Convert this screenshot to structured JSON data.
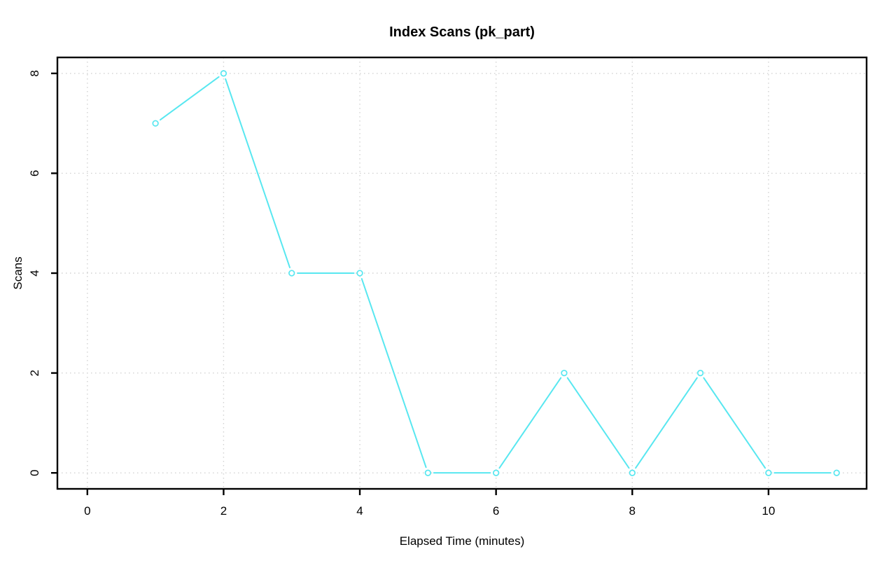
{
  "page": {
    "background_color": "#ffffff"
  },
  "chart_data": {
    "type": "line",
    "title": "Index Scans (pk_part)",
    "xlabel": "Elapsed Time (minutes)",
    "ylabel": "Scans",
    "x": [
      1,
      2,
      3,
      4,
      5,
      6,
      7,
      8,
      9,
      10,
      11
    ],
    "y": [
      7,
      8,
      4,
      4,
      0,
      0,
      2,
      0,
      2,
      0,
      0
    ],
    "xlim": [
      0,
      11
    ],
    "ylim": [
      0,
      8
    ],
    "xticks": [
      0,
      2,
      4,
      6,
      8,
      10
    ],
    "yticks": [
      0,
      2,
      4,
      6,
      8
    ],
    "grid": true,
    "grid_style": "dotted",
    "legend_position": "none",
    "marker": "open-circle",
    "line_style": "points-with-gapped-segments",
    "colors": {
      "series": "#58e7f0",
      "grid": "#d2d2d2",
      "axis": "#000000",
      "text": "#000000",
      "marker_fill": "#ffffff",
      "background": "#ffffff"
    }
  }
}
